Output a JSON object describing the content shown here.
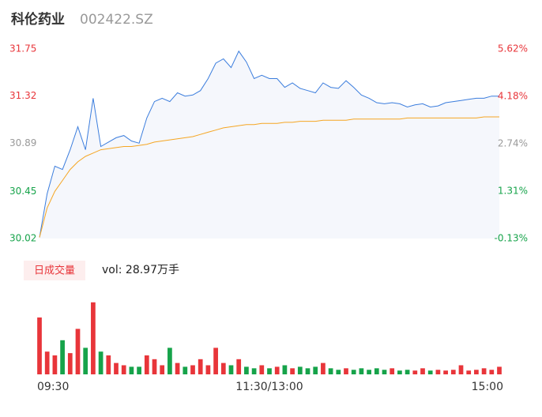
{
  "header": {
    "name": "科伦药业",
    "code": "002422.SZ"
  },
  "chart_data": {
    "type": "line",
    "xlim": [
      0,
      60
    ],
    "xticks": [
      {
        "value": 0,
        "label": "09:30"
      },
      {
        "value": 30,
        "label": "11:30/13:00"
      },
      {
        "value": 60,
        "label": "15:00"
      }
    ],
    "ylim": [
      30.02,
      31.75
    ],
    "yticks": [
      31.75,
      31.32,
      30.89,
      30.45,
      30.02
    ],
    "ytick_colors": [
      "#e8353a",
      "#e8353a",
      "#999999",
      "#16a34a",
      "#16a34a"
    ],
    "y2lim": [
      -0.13,
      5.62
    ],
    "y2ticks": [
      {
        "value": 5.62,
        "label": "5.62%"
      },
      {
        "value": 4.18,
        "label": "4.18%"
      },
      {
        "value": 2.74,
        "label": "2.74%"
      },
      {
        "value": 1.31,
        "label": "1.31%"
      },
      {
        "value": -0.13,
        "label": "-0.13%"
      }
    ],
    "series": [
      {
        "name": "price",
        "color": "#3b7ddd",
        "fill": "#f5f7fc",
        "values": [
          30.03,
          30.43,
          30.68,
          30.65,
          30.83,
          31.04,
          30.83,
          31.3,
          30.86,
          30.9,
          30.94,
          30.96,
          30.91,
          30.89,
          31.12,
          31.27,
          31.3,
          31.27,
          31.35,
          31.32,
          31.33,
          31.37,
          31.48,
          31.62,
          31.66,
          31.58,
          31.73,
          31.63,
          31.48,
          31.51,
          31.48,
          31.48,
          31.4,
          31.44,
          31.39,
          31.37,
          31.35,
          31.44,
          31.4,
          31.39,
          31.46,
          31.4,
          31.33,
          31.3,
          31.26,
          31.25,
          31.26,
          31.25,
          31.22,
          31.24,
          31.25,
          31.22,
          31.23,
          31.26,
          31.27,
          31.28,
          31.29,
          31.3,
          31.3,
          31.32,
          31.32
        ]
      },
      {
        "name": "average",
        "color": "#f5a623",
        "values": [
          30.03,
          30.3,
          30.45,
          30.55,
          30.65,
          30.72,
          30.77,
          30.8,
          30.83,
          30.84,
          30.85,
          30.86,
          30.86,
          30.87,
          30.88,
          30.9,
          30.91,
          30.92,
          30.93,
          30.94,
          30.95,
          30.97,
          30.99,
          31.01,
          31.03,
          31.04,
          31.05,
          31.06,
          31.06,
          31.07,
          31.07,
          31.07,
          31.08,
          31.08,
          31.09,
          31.09,
          31.09,
          31.1,
          31.1,
          31.1,
          31.1,
          31.11,
          31.11,
          31.11,
          31.11,
          31.11,
          31.11,
          31.11,
          31.12,
          31.12,
          31.12,
          31.12,
          31.12,
          31.12,
          31.12,
          31.12,
          31.12,
          31.12,
          31.13,
          31.13,
          31.13
        ]
      }
    ],
    "volume": {
      "badge": "日成交量",
      "label": "vol: 28.97万手",
      "up_color": "#e8353a",
      "down_color": "#16a34a",
      "vlim": [
        0,
        100
      ],
      "values": [
        75,
        30,
        25,
        45,
        28,
        60,
        35,
        95,
        30,
        25,
        15,
        12,
        10,
        10,
        25,
        20,
        12,
        35,
        15,
        10,
        12,
        20,
        12,
        35,
        15,
        12,
        20,
        10,
        8,
        12,
        8,
        10,
        12,
        8,
        10,
        8,
        10,
        15,
        8,
        6,
        8,
        6,
        8,
        6,
        8,
        6,
        8,
        5,
        6,
        5,
        8,
        5,
        6,
        5,
        6,
        12,
        5,
        6,
        8,
        6,
        10
      ]
    }
  }
}
